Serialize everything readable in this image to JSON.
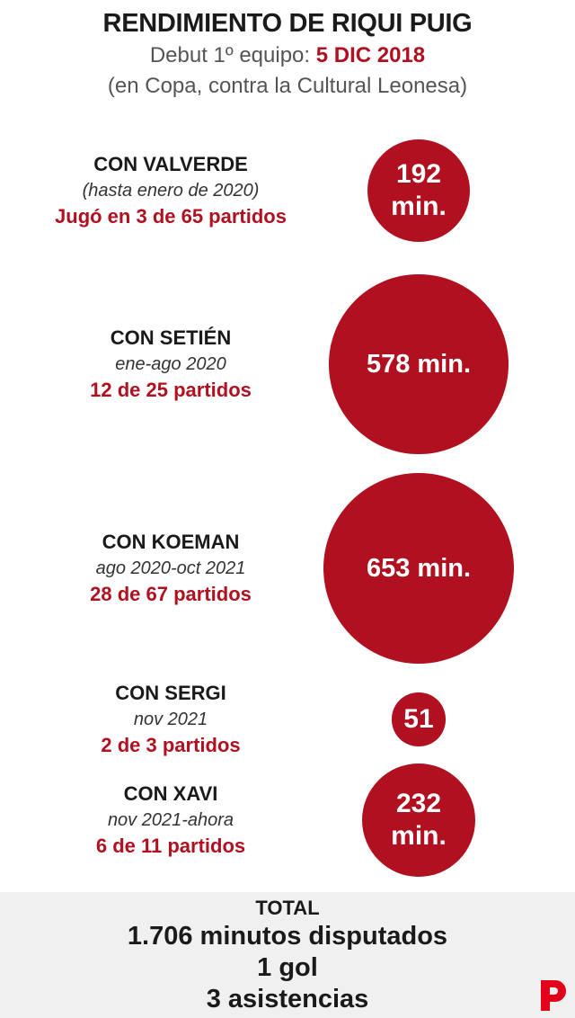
{
  "header": {
    "title": "RENDIMIENTO DE RIQUI PUIG",
    "subtitle_prefix": "Debut 1º equipo: ",
    "subtitle_date": "5 DIC 2018",
    "note": "(en Copa, contra la Cultural Leonesa)"
  },
  "chart_data": {
    "type": "bubble",
    "title": "RENDIMIENTO DE RIQUI PUIG",
    "unit": "min.",
    "categories": [
      "CON VALVERDE",
      "CON SETIÉN",
      "CON KOEMAN",
      "CON SERGI",
      "CON XAVI"
    ],
    "values": [
      192,
      578,
      653,
      51,
      232
    ],
    "rows": [
      {
        "name": "CON VALVERDE",
        "period": "(hasta enero de 2020)",
        "games": "Jugó en 3 de 65 partidos",
        "minutes": 192,
        "bubble_label": "192 min."
      },
      {
        "name": "CON SETIÉN",
        "period": "ene-ago 2020",
        "games": "12 de 25 partidos",
        "minutes": 578,
        "bubble_label": "578 min."
      },
      {
        "name": "CON KOEMAN",
        "period": "ago 2020-oct 2021",
        "games": "28 de 67 partidos",
        "minutes": 653,
        "bubble_label": "653 min."
      },
      {
        "name": "CON SERGI",
        "period": "nov 2021",
        "games": "2 de 3 partidos",
        "minutes": 51,
        "bubble_label": "51"
      },
      {
        "name": "CON XAVI",
        "period": "nov 2021-ahora",
        "games": "6 de 11 partidos",
        "minutes": 232,
        "bubble_label": "232 min."
      }
    ]
  },
  "footer": {
    "total_label": "TOTAL",
    "minutes": "1.706 minutos disputados",
    "goals": "1 gol",
    "assists": "3 asistencias"
  },
  "colors": {
    "accent": "#b0101f",
    "footer_bg": "#f0f0f0"
  }
}
